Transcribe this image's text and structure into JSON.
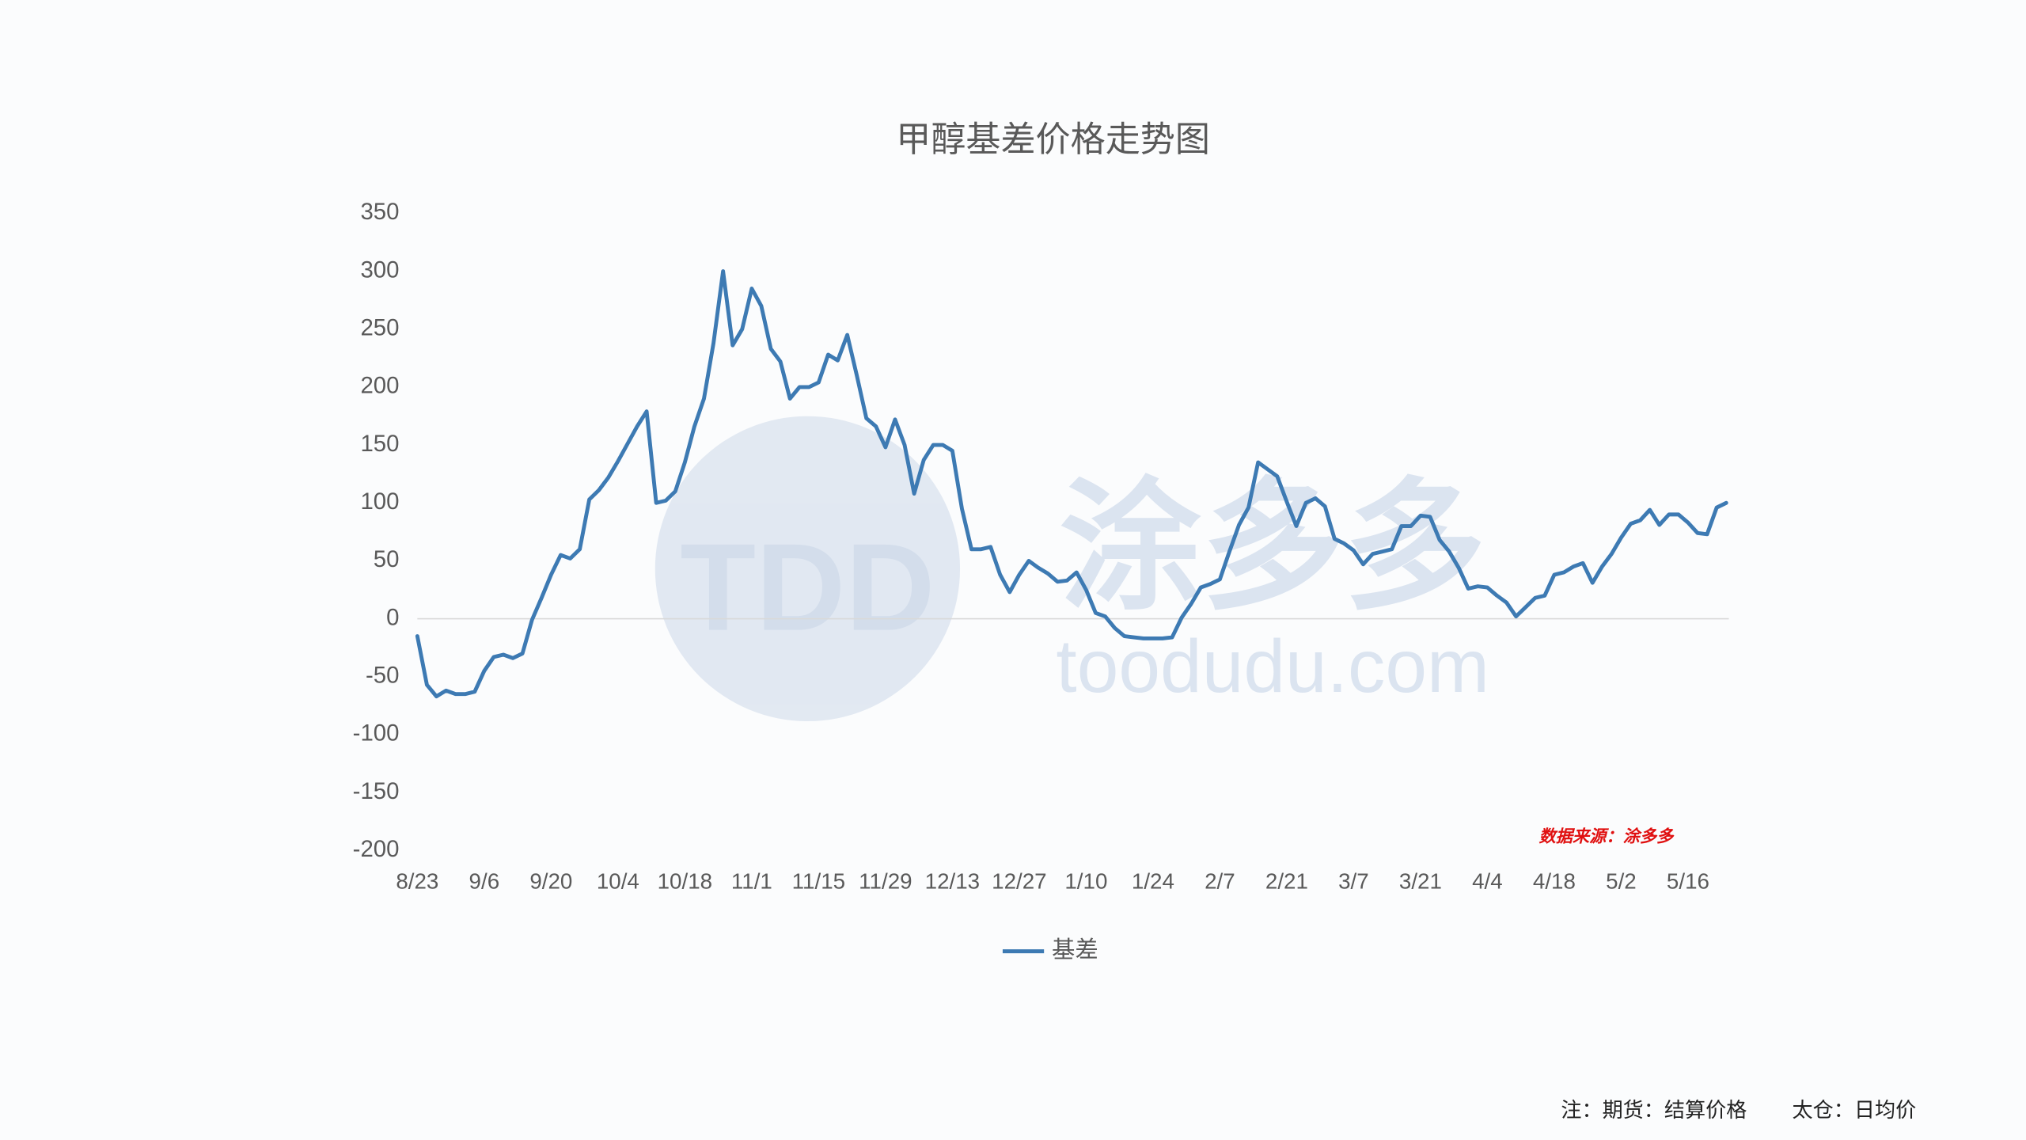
{
  "chart_data": {
    "type": "line",
    "title": "甲醇基差价格走势图",
    "categories": [
      "8/23",
      null,
      null,
      null,
      null,
      null,
      null,
      "9/6",
      null,
      null,
      null,
      null,
      null,
      null,
      "9/20",
      null,
      null,
      null,
      null,
      null,
      null,
      "10/4",
      null,
      null,
      null,
      null,
      null,
      null,
      "10/18",
      null,
      null,
      null,
      null,
      null,
      null,
      "11/1",
      null,
      null,
      null,
      null,
      null,
      null,
      "11/15",
      null,
      null,
      null,
      null,
      null,
      null,
      "11/29",
      null,
      null,
      null,
      null,
      null,
      null,
      "12/13",
      null,
      null,
      null,
      null,
      null,
      null,
      "12/27",
      null,
      null,
      null,
      null,
      null,
      null,
      "1/10",
      null,
      null,
      null,
      null,
      null,
      null,
      "1/24",
      null,
      null,
      null,
      null,
      null,
      null,
      "2/7",
      null,
      null,
      null,
      null,
      null,
      null,
      "2/21",
      null,
      null,
      null,
      null,
      null,
      null,
      "3/7",
      null,
      null,
      null,
      null,
      null,
      null,
      "3/21",
      null,
      null,
      null,
      null,
      null,
      null,
      "4/4",
      null,
      null,
      null,
      null,
      null,
      null,
      "4/18",
      null,
      null,
      null,
      null,
      null,
      null,
      "5/2",
      null,
      null,
      null,
      null,
      null,
      null,
      "5/16",
      null,
      null,
      null,
      null
    ],
    "series": [
      {
        "name": "基差",
        "color": "#3d7ab3",
        "values": [
          -15,
          -57,
          -67,
          -62,
          -65,
          -65,
          -63,
          -45,
          -33,
          -31,
          -34,
          -30,
          -1,
          18,
          38,
          55,
          52,
          60,
          103,
          111,
          122,
          136,
          151,
          166,
          179,
          100,
          102,
          110,
          135,
          166,
          190,
          238,
          300,
          236,
          250,
          285,
          270,
          233,
          222,
          190,
          200,
          200,
          204,
          228,
          223,
          245,
          210,
          173,
          166,
          148,
          172,
          150,
          108,
          137,
          150,
          150,
          145,
          95,
          60,
          60,
          62,
          38,
          23,
          38,
          50,
          44,
          39,
          32,
          33,
          40,
          25,
          5,
          2,
          -8,
          -15,
          -16,
          -17,
          -17,
          -17,
          -16,
          1,
          13,
          27,
          30,
          34,
          58,
          81,
          96,
          135,
          129,
          123,
          101,
          80,
          100,
          104,
          97,
          69,
          65,
          59,
          47,
          56,
          58,
          60,
          80,
          80,
          89,
          88,
          68,
          58,
          44,
          26,
          28,
          27,
          20,
          14,
          2,
          10,
          18,
          20,
          38,
          40,
          45,
          48,
          31,
          45,
          56,
          70,
          82,
          85,
          94,
          81,
          90,
          90,
          83,
          74,
          73,
          96,
          100
        ]
      }
    ],
    "ylim": [
      -200,
      350
    ],
    "yticks": [
      -200,
      -150,
      -100,
      -50,
      0,
      50,
      100,
      150,
      200,
      250,
      300,
      350
    ],
    "grid": false,
    "legend": "bottom",
    "source": "数据来源：涂多多",
    "notes": [
      "注：期货：结算价格",
      "太仓：日均价"
    ],
    "watermark": {
      "logo": "TDD",
      "brand": "涂多多",
      "url": "toodudu.com"
    }
  }
}
